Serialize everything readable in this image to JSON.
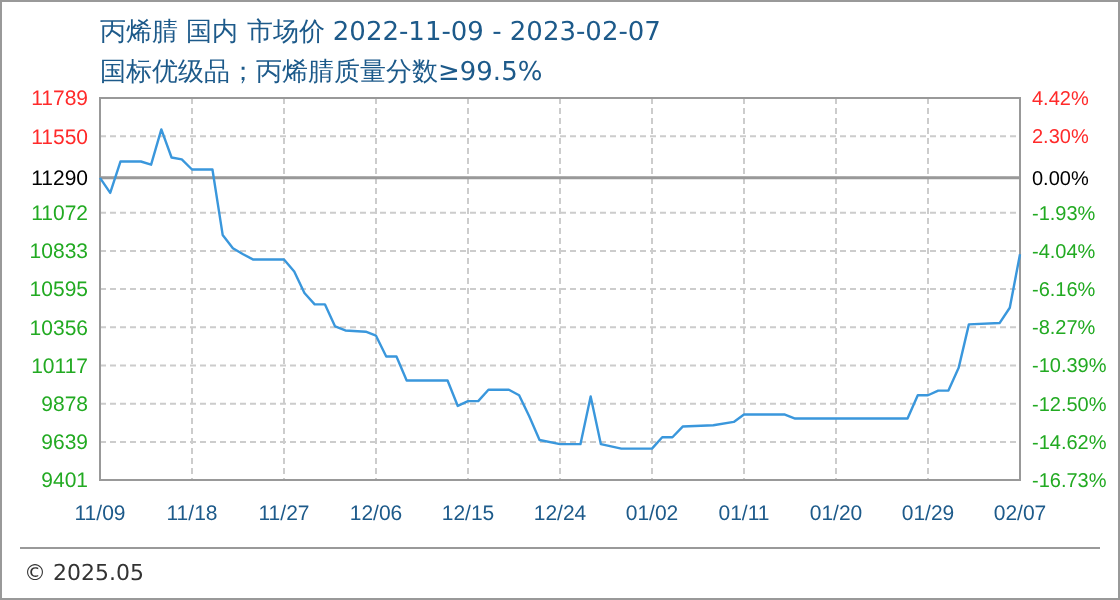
{
  "chart_data": {
    "type": "line",
    "title": "丙烯腈 国内 市场价 2022-11-09 - 2023-02-07",
    "subtitle": "国标优级品；丙烯腈质量分数≥99.5%",
    "x": [
      "2022-11-09",
      "2022-11-10",
      "2022-11-11",
      "2022-11-13",
      "2022-11-14",
      "2022-11-15",
      "2022-11-16",
      "2022-11-17",
      "2022-11-18",
      "2022-11-20",
      "2022-11-21",
      "2022-11-22",
      "2022-11-23",
      "2022-11-24",
      "2022-11-27",
      "2022-11-28",
      "2022-11-29",
      "2022-11-30",
      "2022-12-01",
      "2022-12-02",
      "2022-12-03",
      "2022-12-05",
      "2022-12-06",
      "2022-12-07",
      "2022-12-08",
      "2022-12-09",
      "2022-12-13",
      "2022-12-14",
      "2022-12-15",
      "2022-12-16",
      "2022-12-17",
      "2022-12-19",
      "2022-12-20",
      "2022-12-21",
      "2022-12-22",
      "2022-12-24",
      "2022-12-26",
      "2022-12-27",
      "2022-12-28",
      "2022-12-30",
      "2023-01-02",
      "2023-01-03",
      "2023-01-04",
      "2023-01-05",
      "2023-01-08",
      "2023-01-10",
      "2023-01-11",
      "2023-01-15",
      "2023-01-16",
      "2023-01-27",
      "2023-01-28",
      "2023-01-29",
      "2023-01-30",
      "2023-01-31",
      "2023-02-01",
      "2023-02-02",
      "2023-02-05",
      "2023-02-06",
      "2023-02-07"
    ],
    "series": [
      {
        "color": "#3a97dc",
        "values": [
          11290,
          11196,
          11392,
          11392,
          11372,
          11593,
          11417,
          11405,
          11342,
          11342,
          10933,
          10850,
          10812,
          10779,
          10779,
          10704,
          10570,
          10499,
          10499,
          10361,
          10336,
          10328,
          10303,
          10173,
          10173,
          10023,
          10023,
          9864,
          9894,
          9894,
          9965,
          9965,
          9931,
          9798,
          9651,
          9625,
          9625,
          9923,
          9625,
          9597,
          9597,
          9668,
          9668,
          9735,
          9743,
          9764,
          9810,
          9810,
          9785,
          9785,
          9931,
          9931,
          9960,
          9960,
          10102,
          10374,
          10382,
          10478,
          10812
        ]
      }
    ],
    "xlim": [
      "2022-11-09",
      "2023-02-07"
    ],
    "xticks": [
      {
        "value": "2022-11-09",
        "label": "11/09"
      },
      {
        "value": "2022-11-18",
        "label": "11/18"
      },
      {
        "value": "2022-11-27",
        "label": "11/27"
      },
      {
        "value": "2022-12-06",
        "label": "12/06"
      },
      {
        "value": "2022-12-15",
        "label": "12/15"
      },
      {
        "value": "2022-12-24",
        "label": "12/24"
      },
      {
        "value": "2023-01-02",
        "label": "01/02"
      },
      {
        "value": "2023-01-11",
        "label": "01/11"
      },
      {
        "value": "2023-01-20",
        "label": "01/20"
      },
      {
        "value": "2023-01-29",
        "label": "01/29"
      },
      {
        "value": "2023-02-07",
        "label": "02/07"
      }
    ],
    "ylim": [
      9401,
      11789
    ],
    "yticks": [
      11789,
      11550,
      11290,
      11072,
      10833,
      10595,
      10356,
      10117,
      9878,
      9639,
      9401
    ],
    "y2lim": [
      -16.73,
      4.42
    ],
    "y2ticks": [
      {
        "value": 4.42,
        "label": "4.42%"
      },
      {
        "value": 2.3,
        "label": "2.30%"
      },
      {
        "value": 0,
        "label": "0.00%"
      },
      {
        "value": -1.93,
        "label": "-1.93%"
      },
      {
        "value": -4.04,
        "label": "-4.04%"
      },
      {
        "value": -6.16,
        "label": "-6.16%"
      },
      {
        "value": -8.27,
        "label": "-8.27%"
      },
      {
        "value": -10.39,
        "label": "-10.39%"
      },
      {
        "value": -12.5,
        "label": "-12.50%"
      },
      {
        "value": -14.62,
        "label": "-14.62%"
      },
      {
        "value": -16.73,
        "label": "-16.73%"
      }
    ],
    "ref_lines": [
      {
        "axis": "y",
        "value": 11290,
        "color": "#999999"
      }
    ],
    "grid": true,
    "marker": "none",
    "line_style": "solid",
    "annotations": [
      "© 2025.05"
    ]
  }
}
